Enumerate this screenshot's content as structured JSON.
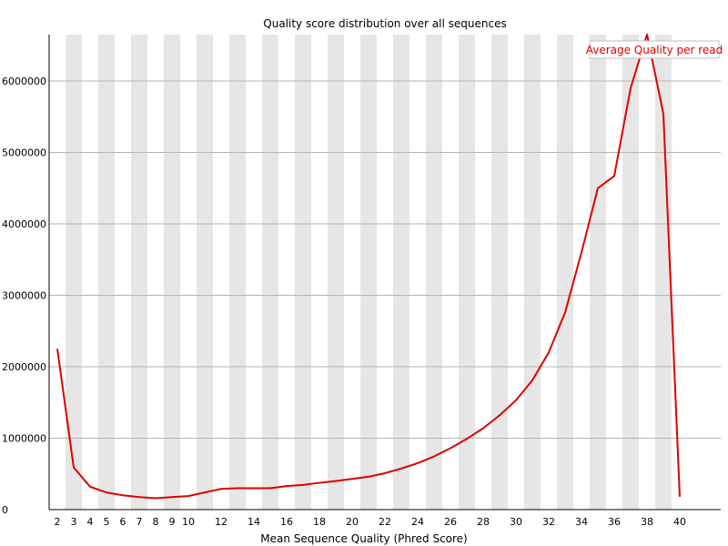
{
  "chart_data": {
    "type": "line",
    "title": "Quality score distribution over all sequences",
    "xlabel": "Mean Sequence Quality (Phred Score)",
    "ylabel": "",
    "x": [
      2,
      3,
      4,
      5,
      6,
      7,
      8,
      9,
      10,
      11,
      12,
      13,
      14,
      15,
      16,
      17,
      18,
      19,
      20,
      21,
      22,
      23,
      24,
      25,
      26,
      27,
      28,
      29,
      30,
      31,
      32,
      33,
      34,
      35,
      36,
      37,
      38,
      39,
      40
    ],
    "x_tick_labels": [
      "2",
      "3",
      "4",
      "5",
      "6",
      "7",
      "8",
      "9",
      "10",
      "12",
      "14",
      "16",
      "18",
      "20",
      "22",
      "24",
      "26",
      "28",
      "30",
      "32",
      "34",
      "36",
      "38",
      "40"
    ],
    "y_tick_values": [
      0,
      1000000,
      2000000,
      3000000,
      4000000,
      5000000,
      6000000
    ],
    "y_tick_labels": [
      "0",
      "1000000",
      "2000000",
      "3000000",
      "4000000",
      "5000000",
      "6000000"
    ],
    "xlim": [
      2,
      40
    ],
    "ylim": [
      0,
      6650000
    ],
    "grid": "horizontal lines, alternating vertical bands",
    "legend_position": "top-right",
    "series": [
      {
        "name": "Average Quality per read",
        "color": "#dd0000",
        "values": [
          2250000,
          590000,
          320000,
          240000,
          200000,
          175000,
          160000,
          175000,
          190000,
          240000,
          290000,
          300000,
          300000,
          300000,
          330000,
          345000,
          375000,
          400000,
          430000,
          460000,
          510000,
          575000,
          650000,
          745000,
          860000,
          990000,
          1140000,
          1320000,
          1530000,
          1810000,
          2200000,
          2760000,
          3600000,
          4500000,
          4670000,
          5900000,
          6650000,
          5540000,
          180000
        ]
      }
    ],
    "band_color": "#e6e6e6",
    "grid_color": "#b4b4b4"
  }
}
